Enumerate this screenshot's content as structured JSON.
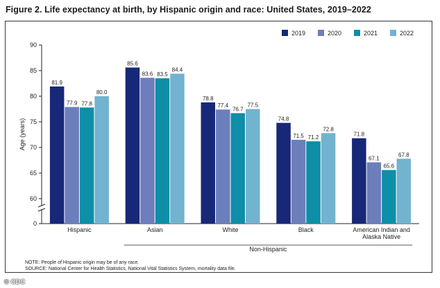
{
  "header": {
    "title": "Figure 2. Life expectancy at birth, by Hispanic origin and race: United States, 2019–2022"
  },
  "footer": {
    "note": "NOTE: People of Hispanic origin may be of any race.",
    "source": "SOURCE: National Center for Health Statistics, National Vital Statistics System, mortality data file.",
    "credit": "© CDC"
  },
  "chart_data": {
    "type": "bar",
    "title": "Figure 2. Life expectancy at birth, by Hispanic origin and race: United States, 2019–2022",
    "xlabel": "",
    "ylabel": "Age (years)",
    "ylim": [
      55,
      90
    ],
    "yticks": [
      60,
      65,
      70,
      75,
      80,
      85,
      90
    ],
    "zero_label": "0",
    "axis_break": true,
    "categories": [
      "Hispanic",
      "Asian",
      "White",
      "Black",
      "American Indian and Alaska Native"
    ],
    "group_label": "Non-Hispanic",
    "grouped_categories": [
      "Asian",
      "White",
      "Black",
      "American Indian and Alaska Native"
    ],
    "legend_position": "top-right",
    "series": [
      {
        "name": "2019",
        "color": "#182878",
        "values": [
          81.9,
          85.6,
          78.8,
          74.8,
          71.8
        ]
      },
      {
        "name": "2020",
        "color": "#6c7ebc",
        "values": [
          77.9,
          83.6,
          77.4,
          71.5,
          67.1
        ]
      },
      {
        "name": "2021",
        "color": "#0f8ea8",
        "values": [
          77.8,
          83.5,
          76.7,
          71.2,
          65.6
        ]
      },
      {
        "name": "2022",
        "color": "#72b3cf",
        "values": [
          80.0,
          84.4,
          77.5,
          72.8,
          67.8
        ]
      }
    ]
  }
}
